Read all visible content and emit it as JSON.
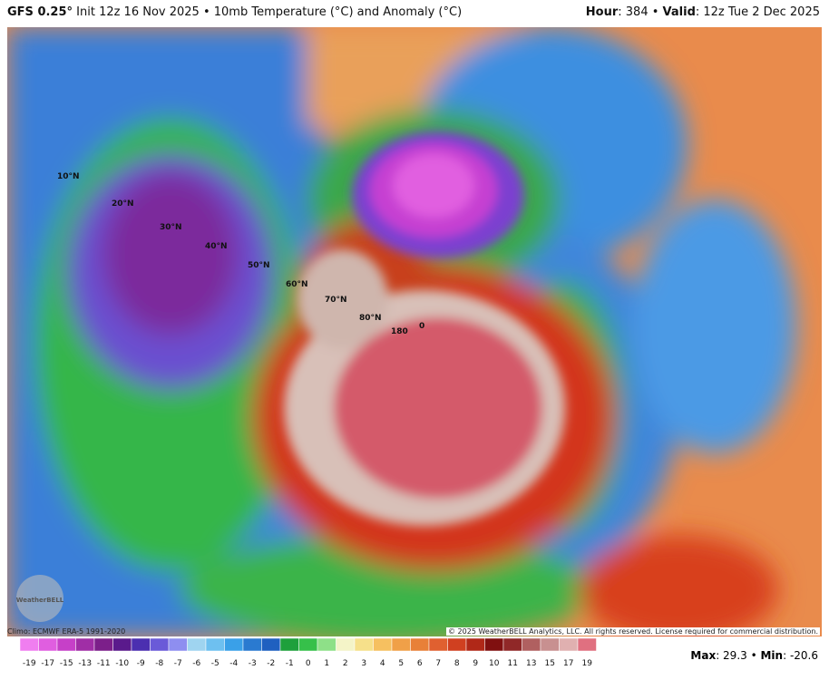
{
  "header": {
    "left": [
      "GFS 0.25°",
      " Init 12z 16 Nov 2025 • 10mb Temperature (°C) and Anomaly (°C)"
    ],
    "right": [
      "Hour",
      ": 384 • ",
      "Valid",
      ": 12z Tue 2 Dec 2025"
    ]
  },
  "map": {
    "lat_labels": [
      "10°N",
      "20°N",
      "30°N",
      "40°N",
      "50°N",
      "60°N",
      "70°N",
      "80°N"
    ],
    "lon_labels": [
      "180",
      "0"
    ],
    "logo": "WeatherBELL"
  },
  "footer": {
    "climo": "Climo: ECMWF ERA-5 1991-2020",
    "copyright": "© 2025 WeatherBELL Analytics, LLC. All rights reserved. License required for commercial distribution.",
    "stats": [
      "Max",
      ": 29.3 • ",
      "Min",
      ": -20.6"
    ]
  },
  "legend": {
    "ticks": [
      -19,
      -17,
      -15,
      -13,
      -11,
      -10,
      -9,
      -8,
      -7,
      -6,
      -5,
      -4,
      -3,
      -2,
      -1,
      0,
      1,
      2,
      3,
      4,
      5,
      6,
      7,
      8,
      9,
      10,
      11,
      13,
      15,
      17,
      19
    ]
  }
}
